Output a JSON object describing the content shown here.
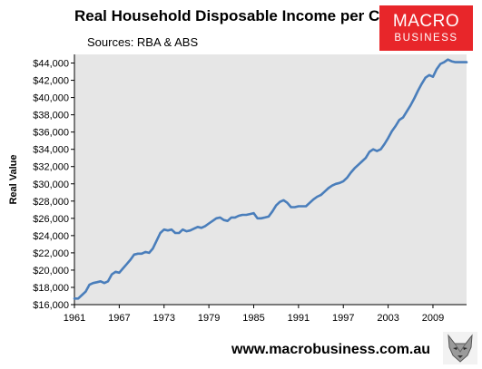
{
  "header": {
    "title": "Real Household Disposable Income per Capita",
    "subtitle": "Sources: RBA & ABS"
  },
  "logo": {
    "line1": "MACRO",
    "line2": "BUSINESS",
    "color": "#e8262a"
  },
  "footer": {
    "url": "www.macrobusiness.com.au",
    "icon": "wolf-icon"
  },
  "chart_data": {
    "type": "line",
    "title": "Real Household Disposable Income per Capita",
    "ylabel": "Real Value",
    "xlabel": "",
    "xlim": [
      1961,
      2013.5
    ],
    "ylim": [
      16000,
      45000
    ],
    "x_ticks": [
      "1961",
      "1967",
      "1973",
      "1979",
      "1985",
      "1991",
      "1997",
      "2003",
      "2009"
    ],
    "y_ticks": [
      "$16,000",
      "$18,000",
      "$20,000",
      "$22,000",
      "$24,000",
      "$26,000",
      "$28,000",
      "$30,000",
      "$32,000",
      "$34,000",
      "$36,000",
      "$38,000",
      "$40,000",
      "$42,000",
      "$44,000"
    ],
    "y_tick_values": [
      16000,
      18000,
      20000,
      22000,
      24000,
      26000,
      28000,
      30000,
      32000,
      34000,
      36000,
      38000,
      40000,
      42000,
      44000
    ],
    "plot_background": "#e6e6e6",
    "grid": false,
    "series": [
      {
        "color": "#4a7ebb",
        "x": [
          1961,
          1961.5,
          1962,
          1962.5,
          1963,
          1963.5,
          1964,
          1964.5,
          1965,
          1965.5,
          1966,
          1966.5,
          1967,
          1967.5,
          1968,
          1968.5,
          1969,
          1969.5,
          1970,
          1970.5,
          1971,
          1971.5,
          1972,
          1972.5,
          1973,
          1973.5,
          1974,
          1974.5,
          1975,
          1975.5,
          1976,
          1976.5,
          1977,
          1977.5,
          1978,
          1978.5,
          1979,
          1979.5,
          1980,
          1980.5,
          1981,
          1981.5,
          1982,
          1982.5,
          1983,
          1983.5,
          1984,
          1984.5,
          1985,
          1985.5,
          1986,
          1986.5,
          1987,
          1987.5,
          1988,
          1988.5,
          1989,
          1989.5,
          1990,
          1990.5,
          1991,
          1991.5,
          1992,
          1992.5,
          1993,
          1993.5,
          1994,
          1994.5,
          1995,
          1995.5,
          1996,
          1996.5,
          1997,
          1997.5,
          1998,
          1998.5,
          1999,
          1999.5,
          2000,
          2000.5,
          2001,
          2001.5,
          2002,
          2002.5,
          2003,
          2003.5,
          2004,
          2004.5,
          2005,
          2005.5,
          2006,
          2006.5,
          2007,
          2007.5,
          2008,
          2008.5,
          2009,
          2009.5,
          2010,
          2010.5,
          2011,
          2011.5,
          2012,
          2012.5,
          2013,
          2013.5
        ],
        "y": [
          16700,
          16700,
          17100,
          17500,
          18300,
          18500,
          18600,
          18700,
          18500,
          18700,
          19500,
          19800,
          19700,
          20200,
          20700,
          21200,
          21800,
          21900,
          21900,
          22100,
          22000,
          22500,
          23400,
          24300,
          24700,
          24600,
          24700,
          24300,
          24300,
          24700,
          24500,
          24600,
          24800,
          25000,
          24900,
          25100,
          25400,
          25700,
          26000,
          26100,
          25800,
          25700,
          26100,
          26100,
          26300,
          26400,
          26400,
          26500,
          26600,
          26000,
          26000,
          26100,
          26200,
          26800,
          27500,
          27900,
          28100,
          27800,
          27300,
          27300,
          27400,
          27400,
          27400,
          27800,
          28200,
          28500,
          28700,
          29100,
          29500,
          29800,
          30000,
          30100,
          30300,
          30700,
          31300,
          31800,
          32200,
          32600,
          33000,
          33700,
          34000,
          33800,
          34000,
          34600,
          35300,
          36100,
          36700,
          37400,
          37700,
          38400,
          39100,
          39900,
          40800,
          41600,
          42300,
          42600,
          42400,
          43300,
          43900,
          44100,
          44400,
          44200,
          44100,
          44100,
          44100,
          44100
        ]
      }
    ]
  }
}
